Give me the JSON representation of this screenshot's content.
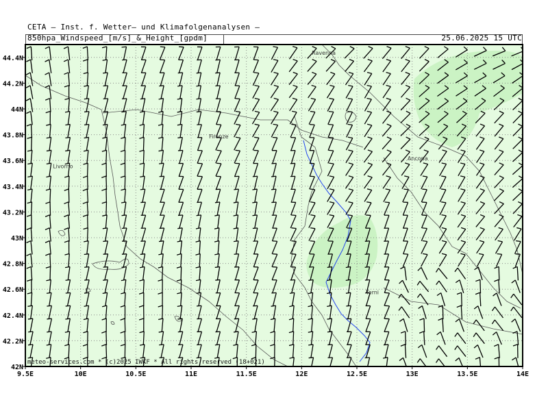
{
  "header": {
    "institute": "CETA — Inst. f. Wetter— und Klimafolgenanalysen —",
    "field": "850hpa_Windspeed_[m/s]_&_Height_[gpdm]",
    "datetime": "25.06.2025 15 UTC"
  },
  "map": {
    "axes": {
      "lon_ticks": [
        "9.5E",
        "10E",
        "10.5E",
        "11E",
        "11.5E",
        "12E",
        "12.5E",
        "13E",
        "13.5E",
        "14E"
      ],
      "lat_ticks": [
        "44.4N",
        "44.2N",
        "44N",
        "43.8N",
        "43.6N",
        "43.4N",
        "43.2N",
        "43N",
        "42.8N",
        "42.6N",
        "42.4N",
        "42.2N",
        "42N"
      ],
      "lon_range": [
        9.5,
        14.0
      ],
      "lat_range": [
        42.0,
        44.5
      ]
    },
    "cities": [
      {
        "name": "Ravenna",
        "lon": 12.2,
        "lat": 44.42
      },
      {
        "name": "Firenze",
        "lon": 11.25,
        "lat": 43.77
      },
      {
        "name": "Livorno",
        "lon": 9.84,
        "lat": 43.54
      },
      {
        "name": "Ancona",
        "lon": 13.05,
        "lat": 43.6
      },
      {
        "name": "Terni",
        "lon": 12.64,
        "lat": 42.56
      }
    ],
    "credit": "meteo-services.com * (c)2025 IWKF * All rights reserved (18+021)",
    "colors": {
      "map_bg": "#e5fbe0",
      "highlight": "#cbf3c4",
      "coast": "#555555",
      "river": "#2244ee",
      "grid": "#888888",
      "barb": "#000000"
    }
  }
}
